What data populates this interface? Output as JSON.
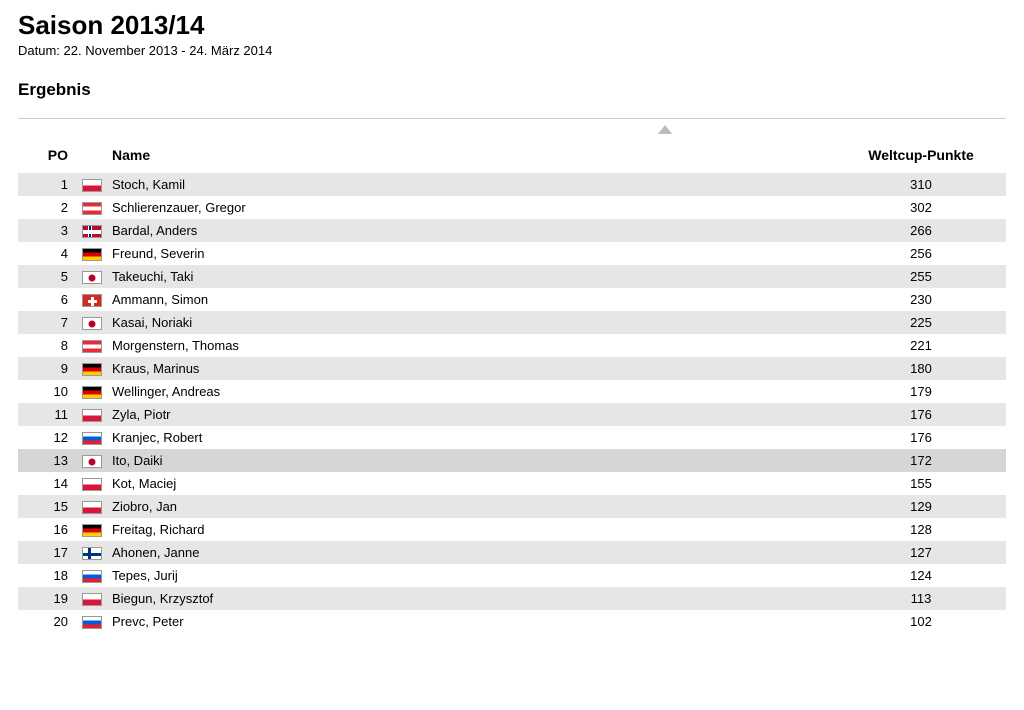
{
  "header": {
    "title": "Saison 2013/14",
    "date_range": "Datum: 22. November 2013 - 24. März 2014",
    "section": "Ergebnis"
  },
  "table": {
    "columns": {
      "po": "PO",
      "name": "Name",
      "points": "Weltcup-Punkte"
    },
    "highlight_row_index": 12,
    "row_colors": {
      "odd": "#e6e6e6",
      "even": "#ffffff",
      "highlight": "#d6d6d6"
    },
    "rows": [
      {
        "po": 1,
        "flag": "POL",
        "name": "Stoch, Kamil",
        "points": 310
      },
      {
        "po": 2,
        "flag": "AUT",
        "name": "Schlierenzauer, Gregor",
        "points": 302
      },
      {
        "po": 3,
        "flag": "NOR",
        "name": "Bardal, Anders",
        "points": 266
      },
      {
        "po": 4,
        "flag": "GER",
        "name": "Freund, Severin",
        "points": 256
      },
      {
        "po": 5,
        "flag": "JPN",
        "name": "Takeuchi, Taki",
        "points": 255
      },
      {
        "po": 6,
        "flag": "SUI",
        "name": "Ammann, Simon",
        "points": 230
      },
      {
        "po": 7,
        "flag": "JPN",
        "name": "Kasai, Noriaki",
        "points": 225
      },
      {
        "po": 8,
        "flag": "AUT",
        "name": "Morgenstern, Thomas",
        "points": 221
      },
      {
        "po": 9,
        "flag": "GER",
        "name": "Kraus, Marinus",
        "points": 180
      },
      {
        "po": 10,
        "flag": "GER",
        "name": "Wellinger, Andreas",
        "points": 179
      },
      {
        "po": 11,
        "flag": "POL",
        "name": "Zyla, Piotr",
        "points": 176
      },
      {
        "po": 12,
        "flag": "SLO",
        "name": "Kranjec, Robert",
        "points": 176
      },
      {
        "po": 13,
        "flag": "JPN",
        "name": "Ito, Daiki",
        "points": 172
      },
      {
        "po": 14,
        "flag": "POL",
        "name": "Kot, Maciej",
        "points": 155
      },
      {
        "po": 15,
        "flag": "POL",
        "name": "Ziobro, Jan",
        "points": 129
      },
      {
        "po": 16,
        "flag": "GER",
        "name": "Freitag, Richard",
        "points": 128
      },
      {
        "po": 17,
        "flag": "FIN",
        "name": "Ahonen, Janne",
        "points": 127
      },
      {
        "po": 18,
        "flag": "SLO",
        "name": "Tepes, Jurij",
        "points": 124
      },
      {
        "po": 19,
        "flag": "POL",
        "name": "Biegun, Krzysztof",
        "points": 113
      },
      {
        "po": 20,
        "flag": "SLO",
        "name": "Prevc, Peter",
        "points": 102
      }
    ]
  }
}
